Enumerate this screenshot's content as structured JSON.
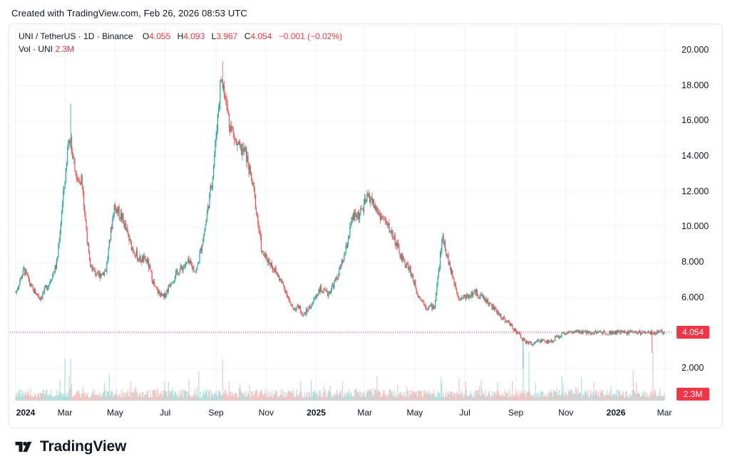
{
  "header": {
    "created_text": "Created with TradingView.com, Feb 26, 2026 08:53 UTC"
  },
  "legend": {
    "symbol": "UNI / TetherUS · 1D · Binance",
    "open_label": "O",
    "open": "4.055",
    "high_label": "H",
    "high": "4.093",
    "low_label": "L",
    "low": "3.967",
    "close_label": "C",
    "close": "4.054",
    "change": "−0.001 (−0.02%)",
    "vol_label": "Vol · UNI",
    "vol": "2.3M"
  },
  "badges": {
    "last_price": "4.054",
    "last_volume": "2.3M"
  },
  "colors": {
    "up": "#26a69a",
    "down": "#ef5350",
    "price_line": "#f23645",
    "grid": "#f0f3fa"
  },
  "brand": {
    "name": "TradingView",
    "icon": "tradingview-logo-icon"
  },
  "chart_data": {
    "type": "candlestick",
    "symbol": "UNI/USDT",
    "interval": "1D",
    "y_axis_ticks": [
      "2.000",
      "4.000",
      "6.000",
      "8.000",
      "10.000",
      "12.000",
      "14.000",
      "16.000",
      "18.000",
      "20.000"
    ],
    "y_range": [
      1.0,
      21.5
    ],
    "x_axis_ticks": [
      {
        "label": "2024",
        "bold": true,
        "x": 0
      },
      {
        "label": "Mar",
        "bold": false,
        "x": 60
      },
      {
        "label": "May",
        "bold": false,
        "x": 121
      },
      {
        "label": "Jul",
        "bold": false,
        "x": 182
      },
      {
        "label": "Sep",
        "bold": false,
        "x": 244
      },
      {
        "label": "Nov",
        "bold": false,
        "x": 305
      },
      {
        "label": "2025",
        "bold": true,
        "x": 366
      },
      {
        "label": "Mar",
        "bold": false,
        "x": 425
      },
      {
        "label": "May",
        "bold": false,
        "x": 486
      },
      {
        "label": "Jul",
        "bold": false,
        "x": 547
      },
      {
        "label": "Sep",
        "bold": false,
        "x": 609
      },
      {
        "label": "Nov",
        "bold": false,
        "x": 670
      },
      {
        "label": "2026",
        "bold": true,
        "x": 731
      },
      {
        "label": "Mar",
        "bold": false,
        "x": 790
      }
    ],
    "x_unit": "days since 2024-01-01",
    "last_close": 4.054,
    "close_series": {
      "x": [
        0,
        10,
        20,
        30,
        40,
        50,
        60,
        65,
        70,
        75,
        80,
        90,
        100,
        110,
        120,
        130,
        140,
        150,
        160,
        170,
        180,
        190,
        200,
        210,
        220,
        230,
        240,
        250,
        260,
        270,
        280,
        290,
        300,
        310,
        320,
        330,
        335,
        340,
        345,
        350,
        360,
        370,
        380,
        390,
        400,
        410,
        420,
        430,
        440,
        450,
        460,
        470,
        480,
        490,
        500,
        510,
        520,
        530,
        540,
        550,
        560,
        570,
        580,
        590,
        600,
        610,
        620,
        630,
        640,
        650,
        660,
        670,
        675,
        680,
        690,
        700,
        710,
        720,
        730,
        740,
        750,
        760,
        770,
        780,
        785,
        790
      ],
      "y": [
        6.3,
        7.6,
        6.5,
        6.0,
        6.8,
        7.9,
        12.8,
        15.3,
        14.2,
        12.5,
        12.8,
        7.9,
        7.2,
        7.6,
        11.2,
        10.5,
        9.0,
        8.2,
        8.1,
        6.5,
        6.0,
        7.0,
        7.6,
        8.0,
        7.5,
        9.8,
        13.0,
        18.5,
        16.0,
        14.5,
        14.2,
        12.0,
        8.5,
        8.0,
        7.2,
        6.3,
        5.5,
        5.4,
        5.5,
        5.0,
        5.6,
        6.5,
        6.2,
        7.0,
        8.3,
        10.5,
        10.8,
        11.8,
        10.9,
        10.3,
        9.5,
        8.2,
        7.6,
        6.2,
        5.5,
        5.5,
        9.5,
        7.5,
        6.0,
        6.1,
        6.3,
        6.0,
        5.5,
        5.0,
        4.6,
        4.1,
        3.5,
        3.4,
        3.6,
        3.5,
        3.8,
        4.05,
        4.05,
        4.05,
        4.05,
        4.05,
        4.05,
        4.05,
        4.05,
        4.05,
        4.05,
        4.05,
        4.05,
        4.05,
        4.05,
        4.054
      ]
    },
    "notable_points": [
      {
        "label": "high",
        "value": 19.4
      },
      {
        "label": "wick low",
        "value": 2.0
      },
      {
        "label": "recent low",
        "value": 3.0
      }
    ]
  }
}
